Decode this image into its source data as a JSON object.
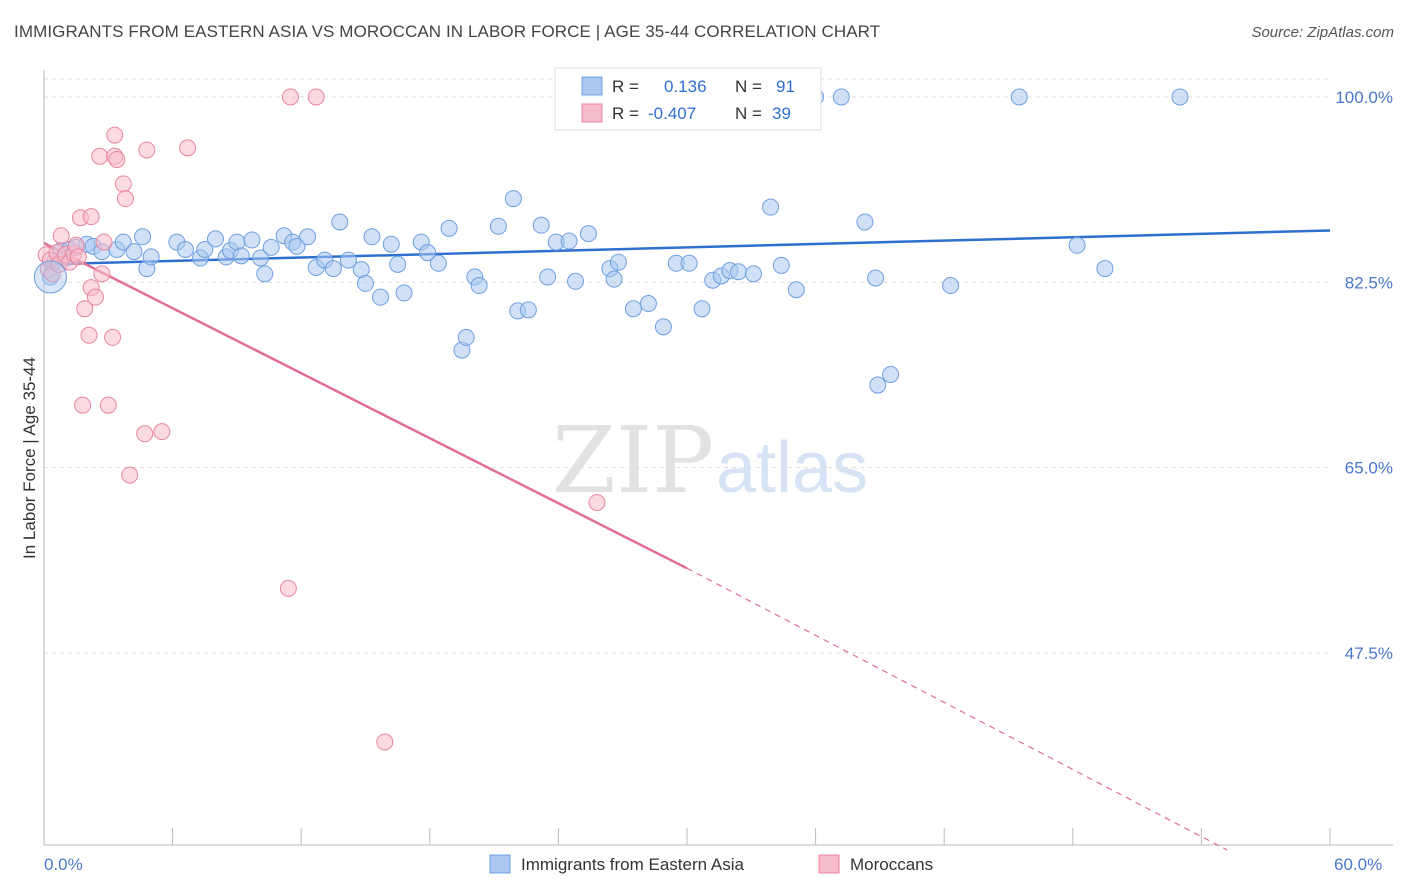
{
  "title": "IMMIGRANTS FROM EASTERN ASIA VS MOROCCAN IN LABOR FORCE | AGE 35-44 CORRELATION CHART",
  "source": "Source: ZipAtlas.com",
  "watermark": {
    "zip": "ZIP",
    "atlas": "atlas"
  },
  "colors": {
    "blue_fill": "#aac8f0",
    "blue_stroke": "#6f9fe0",
    "blue_line": "#2f6fd0",
    "pink_fill": "#f7bccb",
    "pink_stroke": "#e8859f",
    "pink_line": "#e06f98",
    "grid": "#dddddd",
    "tick_text": "#4a78c8"
  },
  "legend": {
    "rows": [
      {
        "r_label": "R =",
        "r_value": "0.136",
        "n_label": "N =",
        "n_value": "91"
      },
      {
        "r_label": "R =",
        "r_value": "-0.407",
        "n_label": "N =",
        "n_value": "39"
      }
    ]
  },
  "chart_data": {
    "type": "scatter",
    "title": "IMMIGRANTS FROM EASTERN ASIA VS MOROCCAN IN LABOR FORCE | AGE 35-44 CORRELATION CHART",
    "xlabel": "",
    "ylabel": "In Labor Force | Age 35-44",
    "xlim": [
      0,
      60
    ],
    "ylim": [
      30,
      101.5
    ],
    "x_tick_labels": [
      "0.0%",
      "60.0%"
    ],
    "y_ticks": [
      47.5,
      65.0,
      82.5,
      100.0
    ],
    "y_tick_labels": [
      "47.5%",
      "65.0%",
      "82.5%",
      "100.0%"
    ],
    "series": [
      {
        "name": "Immigrants from Eastern Asia",
        "color": "blue",
        "R": 0.136,
        "N": 91,
        "trend": {
          "x0": 0,
          "y0": 84.2,
          "x1": 60,
          "y1": 87.4
        },
        "points": [
          [
            0.3,
            83.0
          ],
          [
            0.5,
            84.5
          ],
          [
            0.8,
            85.5
          ],
          [
            1.0,
            84.8
          ],
          [
            1.2,
            85.6
          ],
          [
            1.5,
            85.8
          ],
          [
            2.0,
            86.1
          ],
          [
            2.3,
            85.9
          ],
          [
            2.7,
            85.4
          ],
          [
            3.4,
            85.6
          ],
          [
            3.7,
            86.3
          ],
          [
            4.2,
            85.4
          ],
          [
            4.6,
            86.8
          ],
          [
            4.8,
            83.8
          ],
          [
            5.0,
            84.9
          ],
          [
            6.2,
            86.3
          ],
          [
            6.6,
            85.6
          ],
          [
            7.3,
            84.8
          ],
          [
            7.5,
            85.6
          ],
          [
            8.0,
            86.6
          ],
          [
            8.5,
            84.9
          ],
          [
            8.7,
            85.5
          ],
          [
            9.0,
            86.3
          ],
          [
            9.2,
            85.0
          ],
          [
            9.7,
            86.5
          ],
          [
            10.1,
            84.8
          ],
          [
            10.3,
            83.3
          ],
          [
            10.6,
            85.8
          ],
          [
            11.2,
            86.9
          ],
          [
            11.6,
            86.3
          ],
          [
            11.8,
            85.9
          ],
          [
            12.3,
            86.8
          ],
          [
            12.7,
            83.9
          ],
          [
            13.1,
            84.6
          ],
          [
            13.5,
            83.8
          ],
          [
            13.8,
            88.2
          ],
          [
            14.2,
            84.6
          ],
          [
            14.8,
            83.7
          ],
          [
            15.0,
            82.4
          ],
          [
            15.3,
            86.8
          ],
          [
            15.7,
            81.1
          ],
          [
            16.2,
            86.1
          ],
          [
            16.5,
            84.2
          ],
          [
            16.8,
            81.5
          ],
          [
            17.6,
            86.3
          ],
          [
            17.9,
            85.3
          ],
          [
            18.4,
            84.3
          ],
          [
            18.9,
            87.6
          ],
          [
            19.5,
            76.1
          ],
          [
            19.7,
            77.3
          ],
          [
            20.1,
            83.0
          ],
          [
            20.3,
            82.2
          ],
          [
            21.2,
            87.8
          ],
          [
            21.9,
            90.4
          ],
          [
            22.1,
            79.8
          ],
          [
            22.6,
            79.9
          ],
          [
            23.2,
            87.9
          ],
          [
            23.5,
            83.0
          ],
          [
            23.9,
            86.3
          ],
          [
            24.5,
            86.4
          ],
          [
            24.8,
            82.6
          ],
          [
            25.4,
            87.1
          ],
          [
            26.4,
            83.8
          ],
          [
            26.6,
            82.8
          ],
          [
            26.8,
            84.4
          ],
          [
            27.5,
            80.0
          ],
          [
            28.2,
            80.5
          ],
          [
            28.9,
            78.3
          ],
          [
            29.5,
            84.3
          ],
          [
            30.1,
            84.3
          ],
          [
            30.7,
            80.0
          ],
          [
            31.2,
            82.7
          ],
          [
            31.6,
            83.1
          ],
          [
            32.0,
            83.6
          ],
          [
            32.4,
            83.5
          ],
          [
            33.1,
            83.3
          ],
          [
            33.9,
            89.6
          ],
          [
            34.4,
            84.1
          ],
          [
            35.1,
            81.8
          ],
          [
            35.5,
            100.0
          ],
          [
            36.0,
            100.0
          ],
          [
            37.2,
            100.0
          ],
          [
            38.3,
            88.2
          ],
          [
            38.8,
            82.9
          ],
          [
            38.9,
            72.8
          ],
          [
            39.5,
            73.8
          ],
          [
            42.3,
            82.2
          ],
          [
            45.5,
            100.0
          ],
          [
            48.2,
            86.0
          ],
          [
            49.5,
            83.8
          ],
          [
            53.0,
            100.0
          ]
        ]
      },
      {
        "name": "Moroccans",
        "color": "pink",
        "R": -0.407,
        "N": 39,
        "trend": {
          "x0": 0,
          "y0": 86.2,
          "x1": 30,
          "y1": 55.5,
          "dash_x1": 55.2,
          "dash_y1": 28.9
        },
        "points": [
          [
            0.1,
            85.1
          ],
          [
            0.2,
            83.7
          ],
          [
            0.3,
            84.6
          ],
          [
            0.4,
            83.3
          ],
          [
            0.6,
            85.3
          ],
          [
            0.7,
            84.2
          ],
          [
            0.8,
            86.9
          ],
          [
            1.0,
            85.1
          ],
          [
            1.2,
            84.4
          ],
          [
            1.4,
            85.2
          ],
          [
            1.5,
            86.0
          ],
          [
            1.6,
            84.9
          ],
          [
            1.7,
            88.6
          ],
          [
            1.8,
            70.9
          ],
          [
            1.9,
            80.0
          ],
          [
            2.1,
            77.5
          ],
          [
            2.2,
            88.7
          ],
          [
            2.2,
            82.0
          ],
          [
            2.4,
            81.1
          ],
          [
            2.6,
            94.4
          ],
          [
            2.7,
            83.3
          ],
          [
            2.8,
            86.3
          ],
          [
            3.0,
            70.9
          ],
          [
            3.2,
            77.3
          ],
          [
            3.3,
            96.4
          ],
          [
            3.3,
            94.4
          ],
          [
            3.4,
            94.1
          ],
          [
            3.7,
            91.8
          ],
          [
            3.8,
            90.4
          ],
          [
            4.0,
            64.3
          ],
          [
            4.7,
            68.2
          ],
          [
            4.8,
            95.0
          ],
          [
            5.5,
            68.4
          ],
          [
            6.7,
            95.2
          ],
          [
            11.4,
            53.6
          ],
          [
            11.5,
            100.0
          ],
          [
            12.7,
            100.0
          ],
          [
            15.9,
            39.1
          ],
          [
            25.8,
            61.7
          ]
        ]
      }
    ]
  },
  "bottom_legend": [
    "Immigrants from Eastern Asia",
    "Moroccans"
  ]
}
